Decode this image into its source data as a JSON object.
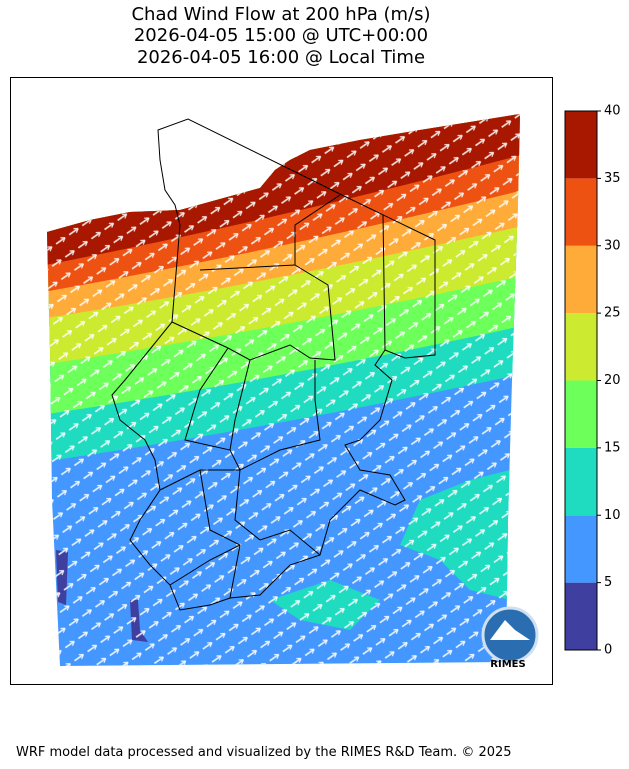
{
  "title": [
    "Chad Wind Flow at 200 hPa (m/s)",
    "2026-04-05 15:00 @ UTC+00:00",
    "2026-04-05 16:00 @ Local Time"
  ],
  "colorbar": {
    "ticks": [
      0,
      5,
      10,
      15,
      20,
      25,
      30,
      35,
      40
    ],
    "colors": [
      "#3f3fa0",
      "#4497ff",
      "#1fdcc0",
      "#6dff5a",
      "#ccea30",
      "#ffab3a",
      "#ee5213",
      "#a81800"
    ]
  },
  "logo": {
    "label": "RIMES"
  },
  "footer": "WRF model data processed and visualized by the RIMES R&D Team. © 2025"
}
